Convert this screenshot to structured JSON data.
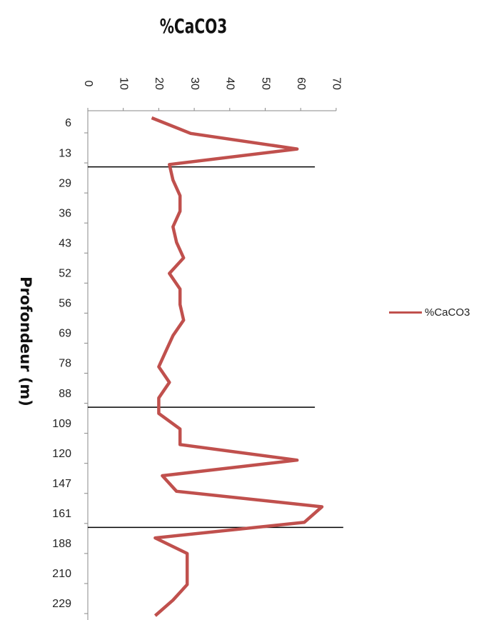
{
  "chart_data": {
    "type": "line",
    "orientation": "depth-profile",
    "title": "%CaCO3",
    "ylabel": "Profondeur (m)",
    "xlim": [
      0,
      70
    ],
    "x_ticks": [
      "0",
      "10",
      "20",
      "30",
      "40",
      "50",
      "60",
      "70"
    ],
    "depth_tick_labels": [
      "6",
      "13",
      "29",
      "36",
      "43",
      "52",
      "56",
      "69",
      "78",
      "88",
      "109",
      "120",
      "147",
      "161",
      "188",
      "210",
      "229"
    ],
    "series": [
      {
        "name": "%CaCO3",
        "color": "#c0504d",
        "values": [
          18,
          29,
          59,
          23,
          24,
          26,
          26,
          24,
          25,
          27,
          23,
          26,
          26,
          27,
          24,
          22,
          20,
          23,
          20,
          20,
          26,
          26,
          59,
          21,
          25,
          66,
          61,
          19,
          28,
          28,
          28,
          24,
          19
        ]
      }
    ],
    "reference_lines_after_depth": [
      "13",
      "88",
      "161"
    ],
    "legend": {
      "position": "right",
      "label": "%CaCO3"
    }
  }
}
